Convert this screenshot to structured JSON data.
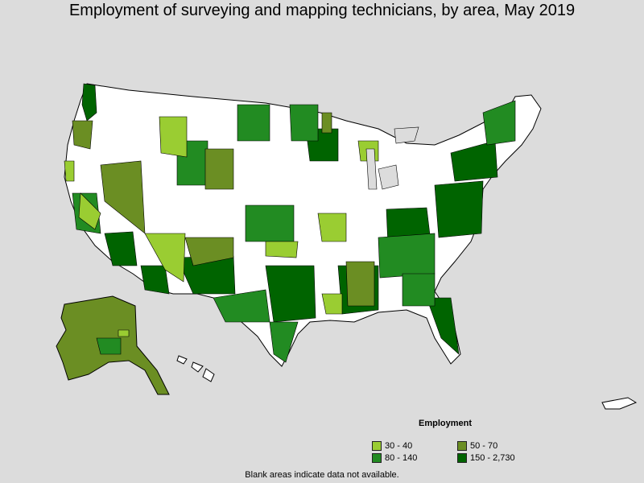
{
  "title": "Employment of surveying and mapping technicians, by area, May 2019",
  "legend": {
    "title": "Employment",
    "items": [
      {
        "label": "30 - 40",
        "color": "#9acd32"
      },
      {
        "label": "50 - 70",
        "color": "#6b8e23"
      },
      {
        "label": "80 - 140",
        "color": "#228b22"
      },
      {
        "label": "150 - 2,730",
        "color": "#006400"
      }
    ]
  },
  "footnote": "Blank areas indicate data not available.",
  "colors": {
    "background": "#dcdcdc",
    "no_data": "#ffffff",
    "border": "#000000"
  }
}
